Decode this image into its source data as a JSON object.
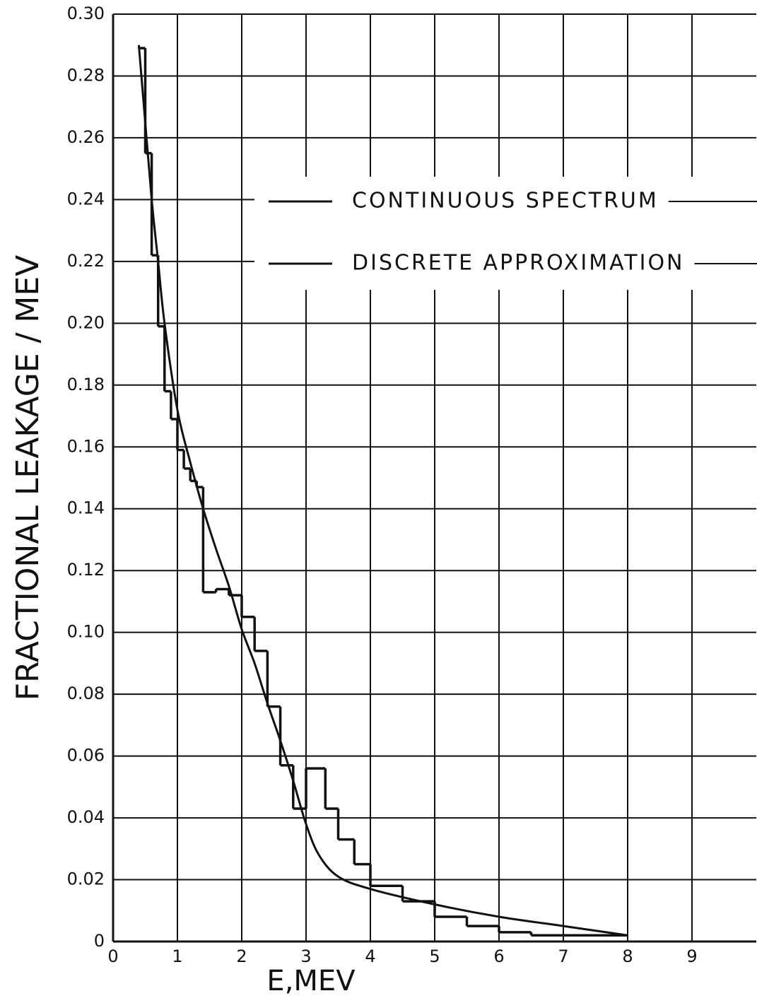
{
  "chart_data": {
    "type": "line",
    "xlabel": "E,MEV",
    "ylabel": "FRACTIONAL LEAKAGE / MEV",
    "xlim": [
      0,
      10
    ],
    "xticks": [
      0,
      1,
      2,
      3,
      4,
      5,
      6,
      7,
      8,
      9
    ],
    "ylim": [
      0,
      0.3
    ],
    "yticks": [
      0,
      0.02,
      0.04,
      0.06,
      0.08,
      {
        "value": 0.1,
        "label": "0.10"
      },
      0.12,
      0.14,
      0.16,
      0.18,
      {
        "value": 0.2,
        "label": "0.20"
      },
      0.22,
      0.24,
      0.26,
      0.28,
      {
        "value": 0.3,
        "label": "0.30"
      }
    ],
    "grid": true,
    "series": [
      {
        "name": "CONTINUOUS SPECTRUM",
        "color": "#111111",
        "x": [
          0.4,
          0.5,
          0.6,
          0.7,
          0.8,
          1.0,
          1.2,
          1.4,
          1.6,
          1.8,
          2.0,
          2.2,
          2.4,
          2.6,
          2.8,
          3.0,
          3.2,
          3.5,
          4.0,
          5.0,
          6.0,
          7.0,
          8.0
        ],
        "values": [
          0.29,
          0.265,
          0.24,
          0.22,
          0.2,
          0.172,
          0.155,
          0.14,
          0.127,
          0.115,
          0.101,
          0.09,
          0.077,
          0.065,
          0.052,
          0.038,
          0.028,
          0.021,
          0.017,
          0.012,
          0.008,
          0.005,
          0.002
        ]
      },
      {
        "name": "DISCRETE APPROXIMATION",
        "color": "#111111",
        "bins": [
          0.4,
          0.5,
          0.6,
          0.7,
          0.8,
          0.9,
          1.0,
          1.1,
          1.2,
          1.3,
          1.4,
          1.6,
          1.8,
          2.0,
          2.2,
          2.4,
          2.6,
          2.8,
          3.0,
          3.3,
          3.5,
          3.75,
          4.0,
          4.5,
          5.0,
          5.5,
          6.0,
          6.5,
          8.0
        ],
        "values": [
          0.289,
          0.255,
          0.222,
          0.199,
          0.178,
          0.169,
          0.159,
          0.153,
          0.149,
          0.147,
          0.113,
          0.114,
          0.112,
          0.105,
          0.094,
          0.076,
          0.057,
          0.043,
          0.056,
          0.043,
          0.033,
          0.025,
          0.018,
          0.013,
          0.008,
          0.005,
          0.003,
          0.002
        ]
      }
    ]
  }
}
